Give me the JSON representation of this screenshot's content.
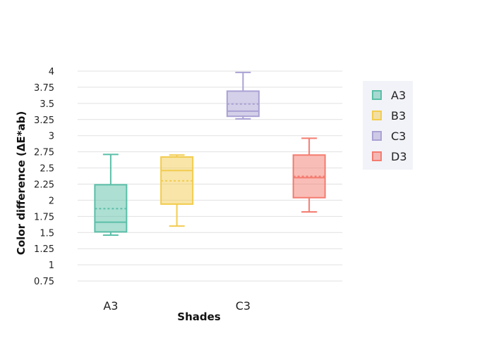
{
  "chart_data": {
    "type": "box",
    "xlabel": "Shades",
    "ylabel": "Color difference (ΔE*ab)",
    "ylim": [
      0.62,
      4.0
    ],
    "yticks": [
      "0.75",
      "1",
      "1.25",
      "1.5",
      "1.75",
      "2",
      "2.25",
      "2.5",
      "2.75",
      "3",
      "3.25",
      "3.5",
      "3.75",
      "4"
    ],
    "x_tick_labels": [
      "A3",
      "C3"
    ],
    "categories": [
      "A3",
      "B3",
      "C3",
      "D3"
    ],
    "grid": true,
    "legend_position": "top-right",
    "series": [
      {
        "name": "A3",
        "color": "#5bbfa8",
        "min": 1.46,
        "q1": 1.51,
        "median": 1.66,
        "mean": 1.87,
        "q3": 2.24,
        "max": 2.71
      },
      {
        "name": "B3",
        "color": "#f2cc4f",
        "min": 1.6,
        "q1": 1.94,
        "median": 2.46,
        "mean": 2.3,
        "q3": 2.67,
        "max": 2.7
      },
      {
        "name": "C3",
        "color": "#aaa2d4",
        "min": 3.26,
        "q1": 3.3,
        "median": 3.38,
        "mean": 3.49,
        "q3": 3.69,
        "max": 3.98
      },
      {
        "name": "D3",
        "color": "#f47c70",
        "min": 1.82,
        "q1": 2.04,
        "median": 2.35,
        "mean": 2.37,
        "q3": 2.7,
        "max": 2.96
      }
    ]
  }
}
